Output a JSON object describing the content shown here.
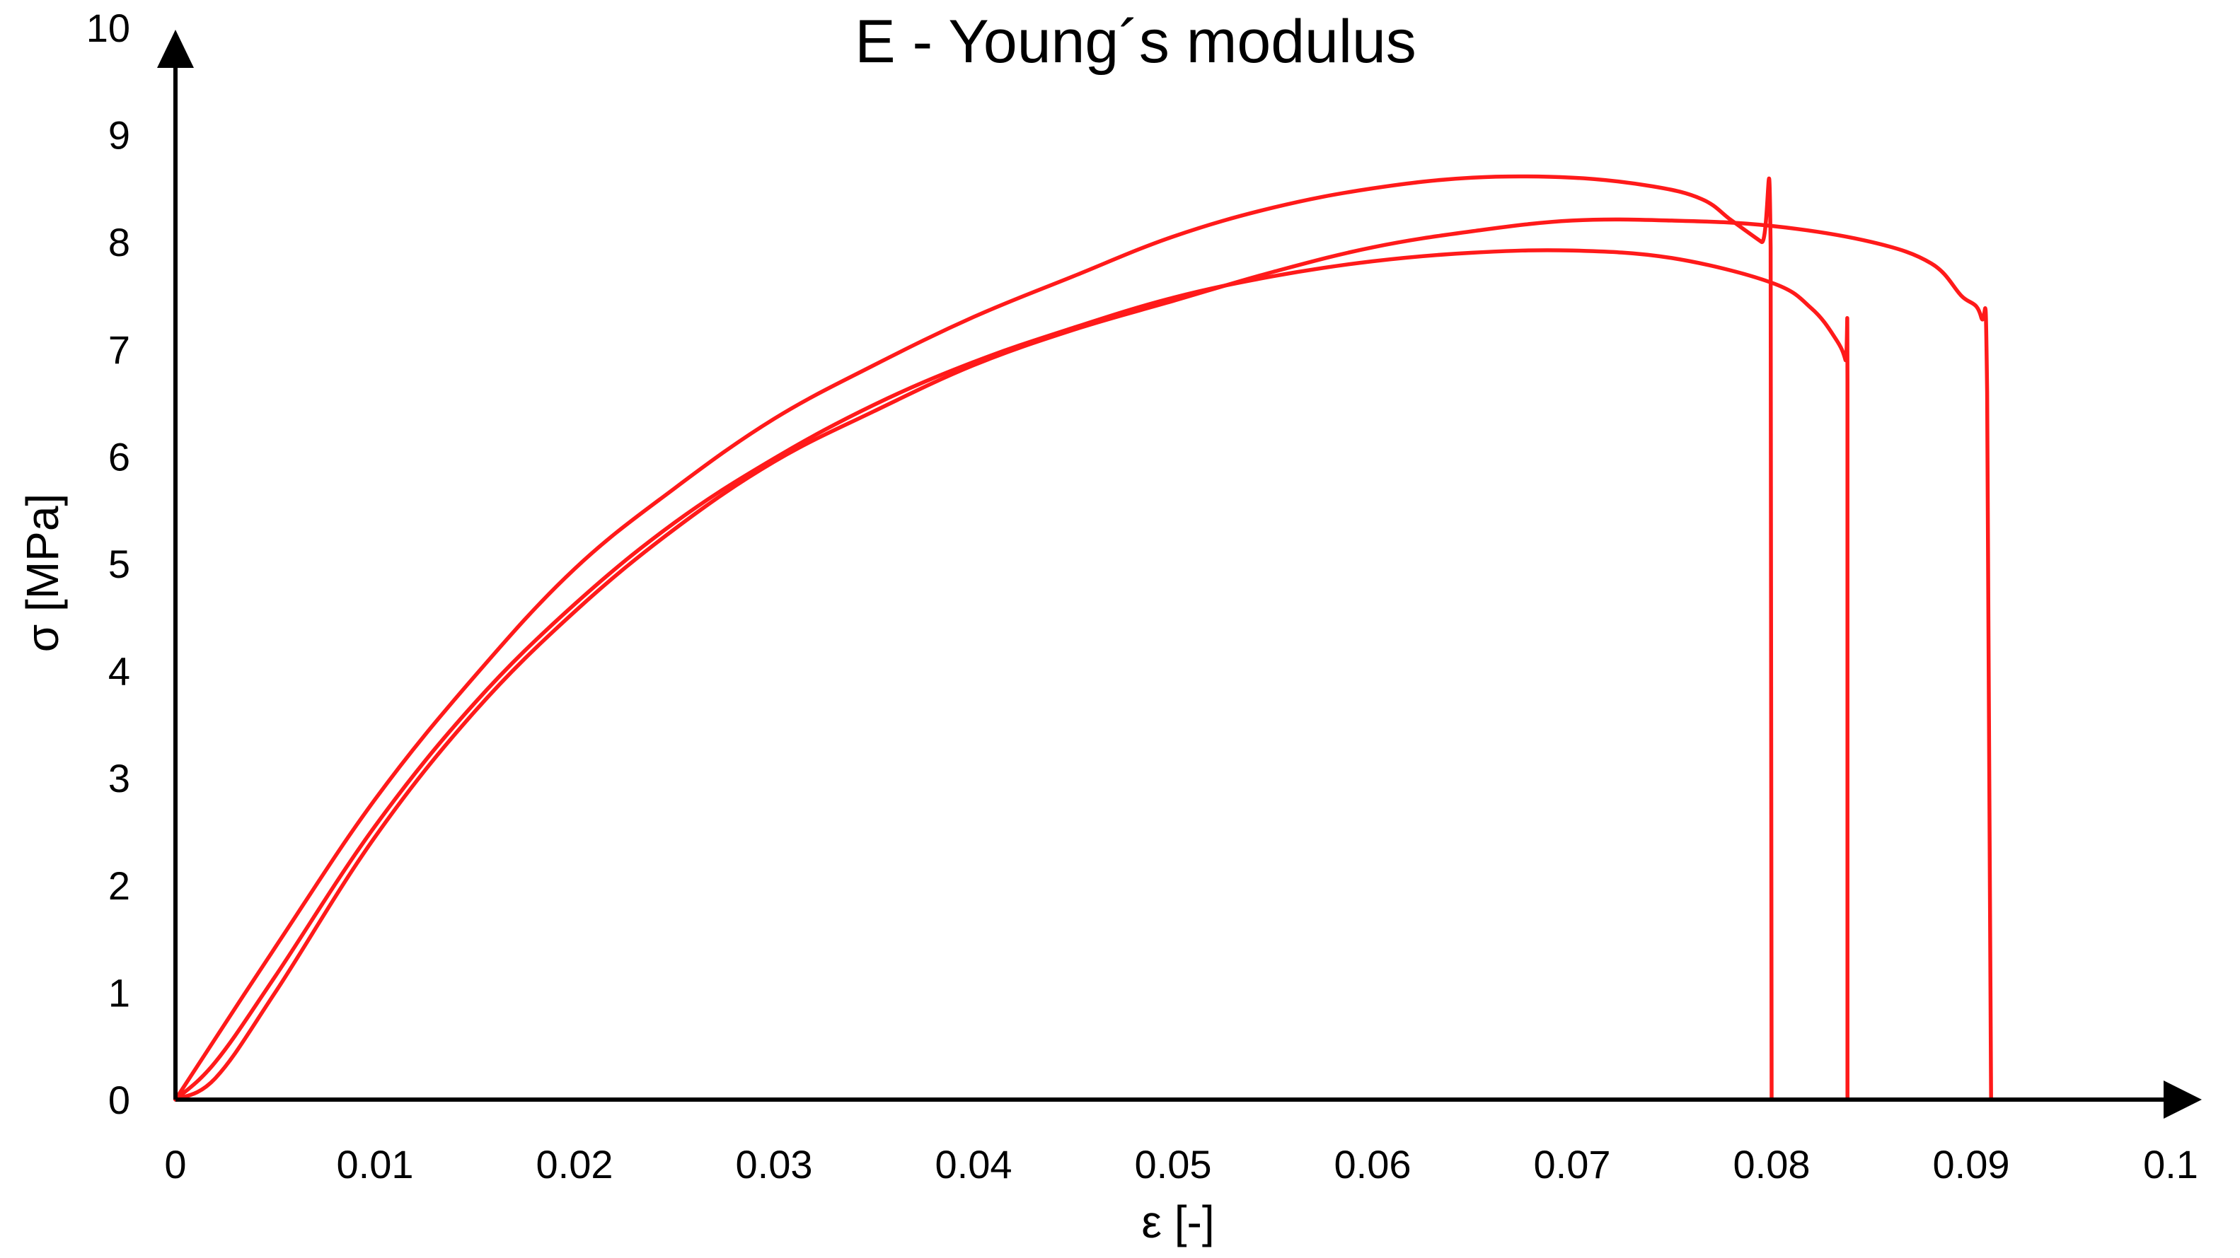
{
  "chart_data": {
    "type": "line",
    "title": "E - Young´s modulus",
    "xlabel": "ε [-]",
    "ylabel": "σ [MPa]",
    "xlim": [
      0,
      0.1
    ],
    "ylim": [
      0,
      10
    ],
    "x_ticks": [
      "0",
      "0.01",
      "0.02",
      "0.03",
      "0.04",
      "0.05",
      "0.06",
      "0.07",
      "0.08",
      "0.09",
      "0.1"
    ],
    "y_ticks": [
      "0",
      "1",
      "2",
      "3",
      "4",
      "5",
      "6",
      "7",
      "8",
      "9",
      "10"
    ],
    "grid": false,
    "legend": "none",
    "line_color": "#ff1a1a",
    "series": [
      {
        "points": [
          [
            0,
            0
          ],
          [
            0.005,
            1.42
          ],
          [
            0.01,
            2.8
          ],
          [
            0.015,
            3.95
          ],
          [
            0.02,
            4.95
          ],
          [
            0.025,
            5.7
          ],
          [
            0.03,
            6.35
          ],
          [
            0.035,
            6.85
          ],
          [
            0.04,
            7.3
          ],
          [
            0.045,
            7.68
          ],
          [
            0.05,
            8.05
          ],
          [
            0.055,
            8.32
          ],
          [
            0.06,
            8.5
          ],
          [
            0.065,
            8.6
          ],
          [
            0.07,
            8.6
          ],
          [
            0.074,
            8.52
          ],
          [
            0.0765,
            8.4
          ],
          [
            0.078,
            8.2
          ],
          [
            0.0795,
            8.0
          ],
          [
            0.07995,
            7.95
          ],
          [
            0.08,
            0
          ]
        ]
      },
      {
        "points": [
          [
            0,
            0
          ],
          [
            0.002,
            0.2
          ],
          [
            0.005,
            1.0
          ],
          [
            0.01,
            2.45
          ],
          [
            0.015,
            3.62
          ],
          [
            0.02,
            4.55
          ],
          [
            0.025,
            5.32
          ],
          [
            0.03,
            5.95
          ],
          [
            0.035,
            6.42
          ],
          [
            0.04,
            6.85
          ],
          [
            0.045,
            7.18
          ],
          [
            0.05,
            7.45
          ],
          [
            0.055,
            7.72
          ],
          [
            0.06,
            7.95
          ],
          [
            0.065,
            8.1
          ],
          [
            0.07,
            8.2
          ],
          [
            0.075,
            8.2
          ],
          [
            0.08,
            8.15
          ],
          [
            0.085,
            8.0
          ],
          [
            0.088,
            7.8
          ],
          [
            0.0895,
            7.5
          ],
          [
            0.0905,
            7.3
          ],
          [
            0.0908,
            6.6
          ],
          [
            0.091,
            0
          ]
        ]
      },
      {
        "points": [
          [
            0,
            0
          ],
          [
            0.002,
            0.35
          ],
          [
            0.005,
            1.15
          ],
          [
            0.01,
            2.55
          ],
          [
            0.015,
            3.7
          ],
          [
            0.02,
            4.62
          ],
          [
            0.025,
            5.38
          ],
          [
            0.03,
            5.98
          ],
          [
            0.035,
            6.48
          ],
          [
            0.04,
            6.88
          ],
          [
            0.045,
            7.2
          ],
          [
            0.05,
            7.48
          ],
          [
            0.055,
            7.68
          ],
          [
            0.06,
            7.82
          ],
          [
            0.065,
            7.9
          ],
          [
            0.07,
            7.92
          ],
          [
            0.075,
            7.85
          ],
          [
            0.08,
            7.62
          ],
          [
            0.082,
            7.38
          ],
          [
            0.0832,
            7.1
          ],
          [
            0.0837,
            6.9
          ],
          [
            0.0838,
            6.7
          ],
          [
            0.0838,
            0
          ]
        ]
      }
    ]
  }
}
